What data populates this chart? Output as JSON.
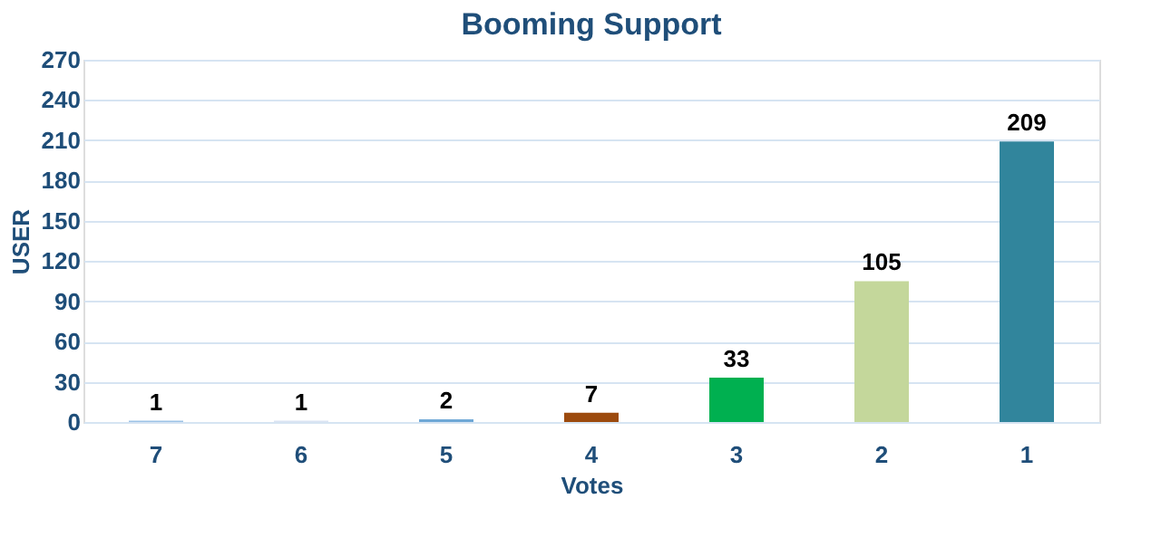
{
  "chart_data": {
    "type": "bar",
    "title": "Booming Support",
    "xlabel": "Votes",
    "ylabel": "USER",
    "categories": [
      "7",
      "6",
      "5",
      "4",
      "3",
      "2",
      "1"
    ],
    "values": [
      1,
      1,
      2,
      7,
      33,
      105,
      209
    ],
    "colors": [
      "#9dc3e6",
      "#dae3f3",
      "#6fa8d6",
      "#9c4a0e",
      "#00b050",
      "#c4d79b",
      "#31859c"
    ],
    "ylim": [
      0,
      270
    ],
    "yticks": [
      0,
      30,
      60,
      90,
      120,
      150,
      180,
      210,
      240,
      270
    ],
    "grid": "y",
    "data_labels": true
  }
}
